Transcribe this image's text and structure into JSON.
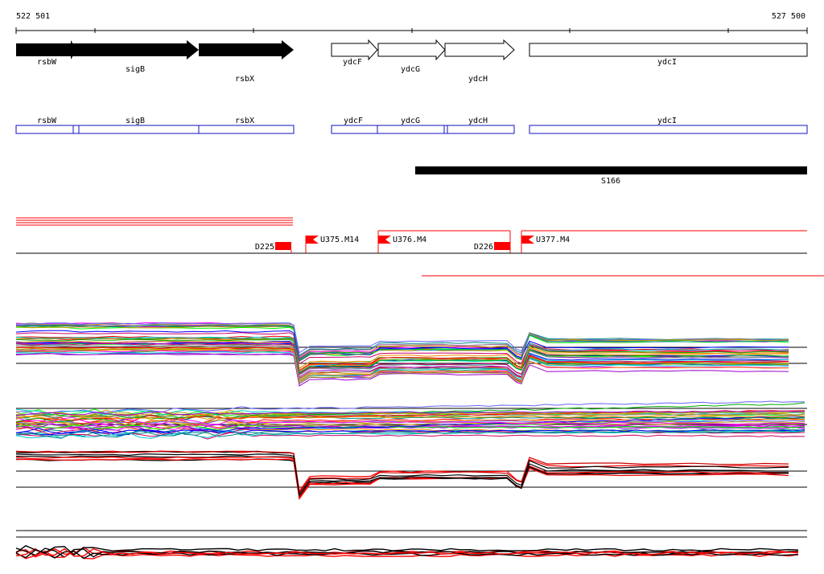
{
  "ruler": {
    "start_label": "522 501",
    "end_label": "527 500"
  },
  "genes": [
    {
      "name": "rsbW",
      "kind": "filled"
    },
    {
      "name": "sigB",
      "kind": "filled"
    },
    {
      "name": "rsbX",
      "kind": "filled"
    },
    {
      "name": "ydcF",
      "kind": "outline"
    },
    {
      "name": "ydcG",
      "kind": "outline"
    },
    {
      "name": "ydcH",
      "kind": "outline"
    },
    {
      "name": "ydcI",
      "kind": "outline-box"
    }
  ],
  "cds_track": [
    {
      "name": "rsbW"
    },
    {
      "name": "sigB"
    },
    {
      "name": "rsbX"
    },
    {
      "name": "ydcF"
    },
    {
      "name": "ydcG"
    },
    {
      "name": "ydcH"
    },
    {
      "name": "ydcI"
    }
  ],
  "feature": {
    "name": "S166"
  },
  "markers": [
    {
      "name": "D225",
      "type": "block"
    },
    {
      "name": "U375.M14",
      "type": "flag"
    },
    {
      "name": "U376.M4",
      "type": "flag"
    },
    {
      "name": "D226",
      "type": "block"
    },
    {
      "name": "U377.M4",
      "type": "flag"
    }
  ],
  "colors": {
    "gene_fill": "#000000",
    "cds_stroke": "#1010c0",
    "marker": "#ff0000",
    "axis": "#000000"
  },
  "expression_colors": [
    "#ff0000",
    "#00aa00",
    "#0000ff",
    "#ff00ff",
    "#00cccc",
    "#cc9900",
    "#9900cc",
    "#ff8800",
    "#008888",
    "#888888",
    "#00ff00",
    "#cc0066",
    "#6666ff",
    "#aaaa00"
  ]
}
